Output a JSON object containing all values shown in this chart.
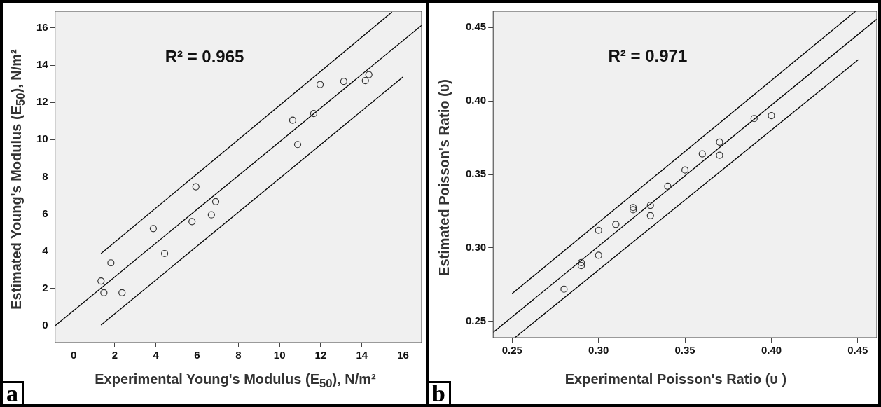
{
  "chart_data": [
    {
      "type": "scatter",
      "xlabel": "Experimental Young's Modulus (E$_{50}$), N/m²",
      "ylabel": "Estimated Young's Modulus (E$_{50}$), N/m²",
      "annotations": [
        "R² = 0.965",
        "a"
      ],
      "xlim": [
        -0.9,
        16.9
      ],
      "ylim": [
        -0.9,
        16.9
      ],
      "xticks": [
        0,
        2,
        4,
        6,
        8,
        10,
        12,
        14,
        16
      ],
      "yticks": [
        0,
        2,
        4,
        6,
        8,
        10,
        12,
        14,
        16
      ],
      "legend": false,
      "series": [
        {
          "marker": "circle",
          "color": "#333333",
          "x": [
            1.33,
            1.47,
            1.81,
            2.35,
            3.87,
            4.42,
            5.75,
            5.94,
            6.69,
            6.9,
            10.64,
            10.88,
            11.66,
            11.97,
            13.12,
            14.17,
            14.34
          ],
          "values": [
            2.41,
            1.78,
            3.38,
            1.78,
            5.22,
            3.88,
            5.6,
            7.47,
            5.96,
            6.67,
            11.04,
            9.74,
            11.4,
            12.96,
            13.13,
            13.17,
            13.49
          ]
        },
        {
          "type": "line",
          "marker": "none",
          "color": "#000000",
          "x": [
            -0.9,
            16.9
          ],
          "values": [
            0,
            16.14
          ]
        },
        {
          "type": "line",
          "marker": "none",
          "color": "#000000",
          "x": [
            1.33,
            15.46
          ],
          "values": [
            3.88,
            16.85
          ]
        },
        {
          "type": "line",
          "marker": "none",
          "color": "#000000",
          "x": [
            1.33,
            16.0
          ],
          "values": [
            0.04,
            13.37
          ]
        }
      ]
    },
    {
      "type": "scatter",
      "xlabel": "Experimental Poisson's Ratio (υ )",
      "ylabel": "Estimated Poisson's Ratio (υ)",
      "annotations": [
        "R² = 0.971",
        "b"
      ],
      "xlim": [
        0.239,
        0.461
      ],
      "ylim": [
        0.239,
        0.461
      ],
      "xticks": [
        0.25,
        {
          "value": 0.3,
          "label": "0.30"
        },
        0.35,
        {
          "value": 0.4,
          "label": "0.40"
        },
        0.45
      ],
      "yticks": [
        0.25,
        {
          "value": 0.3,
          "label": "0.30"
        },
        0.35,
        {
          "value": 0.4,
          "label": "0.40"
        },
        0.45
      ],
      "legend": false,
      "series": [
        {
          "marker": "circle",
          "color": "#333333",
          "x": [
            0.28,
            0.29,
            0.29,
            0.3,
            0.3,
            0.31,
            0.32,
            0.32,
            0.33,
            0.33,
            0.34,
            0.35,
            0.36,
            0.37,
            0.37,
            0.39,
            0.4
          ],
          "values": [
            0.272,
            0.29,
            0.288,
            0.312,
            0.295,
            0.316,
            0.3275,
            0.326,
            0.329,
            0.322,
            0.342,
            0.353,
            0.364,
            0.372,
            0.363,
            0.388,
            0.39
          ]
        },
        {
          "type": "line",
          "marker": "none",
          "color": "#000000",
          "x": [
            0.239,
            0.461
          ],
          "values": [
            0.2426,
            0.4556
          ]
        },
        {
          "type": "line",
          "marker": "none",
          "color": "#000000",
          "x": [
            0.25,
            0.4487
          ],
          "values": [
            0.269,
            0.461
          ]
        },
        {
          "type": "line",
          "marker": "none",
          "color": "#000000",
          "x": [
            0.2516,
            0.4503
          ],
          "values": [
            0.239,
            0.428
          ]
        }
      ]
    }
  ]
}
